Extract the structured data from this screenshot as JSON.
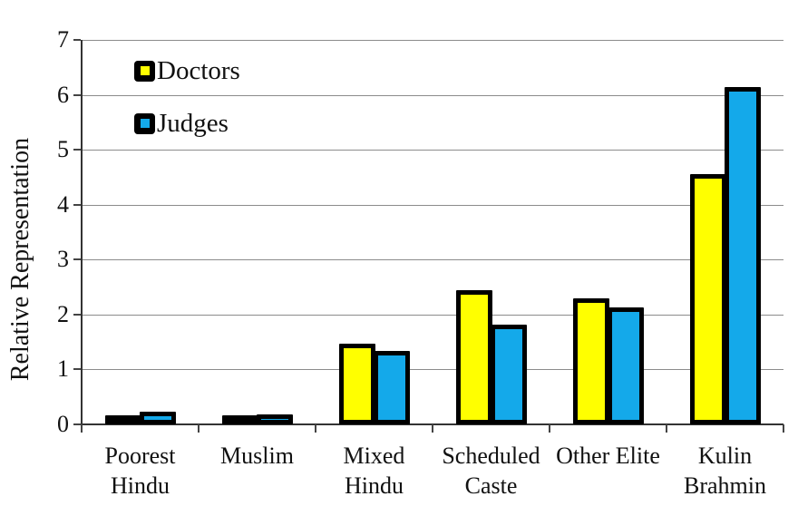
{
  "chart_data": {
    "type": "bar",
    "title": "",
    "xlabel": "",
    "ylabel": "Relative Representation",
    "ylim": [
      0,
      7
    ],
    "yticks": [
      0,
      1,
      2,
      3,
      4,
      5,
      6,
      7
    ],
    "grid": true,
    "legend_position": "top-left-inside",
    "categories": [
      "Poorest Hindu",
      "Muslim",
      "Mixed Hindu",
      "Scheduled Caste",
      "Other Elite",
      "Kulin Brahmin"
    ],
    "category_label_lines": [
      [
        "Poorest",
        "Hindu"
      ],
      [
        "Muslim"
      ],
      [
        "Mixed",
        "Hindu"
      ],
      [
        "Scheduled",
        "Caste"
      ],
      [
        "Other Elite"
      ],
      [
        "Kulin",
        "Brahmin"
      ]
    ],
    "series": [
      {
        "name": "Doctors",
        "color": "#FFFF00",
        "values": [
          0.07,
          0.11,
          1.42,
          2.4,
          2.24,
          4.5
        ]
      },
      {
        "name": "Judges",
        "color": "#14A9EA",
        "values": [
          0.18,
          0.14,
          1.28,
          1.77,
          2.08,
          6.1
        ]
      }
    ],
    "bar_border_color": "#000000",
    "gridline_color": "#8c8c8c",
    "axis_color": "#333333"
  }
}
